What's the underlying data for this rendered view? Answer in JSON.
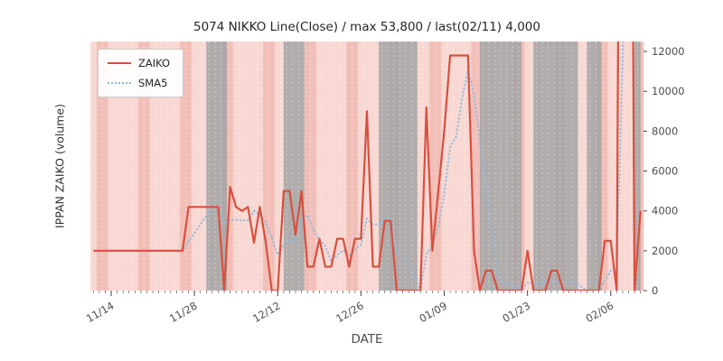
{
  "chart_data": {
    "type": "line",
    "title": "5074 NIKKO Line(Close) / max 53,800 / last(02/11) 4,000",
    "xlabel": "DATE",
    "ylabel": "IPPAN ZAIKO (volume)",
    "x_unit": "day",
    "x_start_label": "11/11",
    "x_ticks": [
      "11/14",
      "11/28",
      "12/12",
      "12/26",
      "01/09",
      "01/23",
      "02/06"
    ],
    "x_tick_indices": [
      3,
      17,
      31,
      45,
      59,
      73,
      87
    ],
    "y_ticks": [
      0,
      2000,
      4000,
      6000,
      8000,
      10000,
      12000
    ],
    "ylim": [
      0,
      12500
    ],
    "grid": false,
    "legend_position": "upper-left",
    "series": [
      {
        "name": "ZAIKO",
        "style": "solid",
        "color": "#d8503f",
        "values": [
          2000,
          2000,
          2000,
          2000,
          2000,
          2000,
          2000,
          2000,
          2000,
          2000,
          2000,
          2000,
          2000,
          2000,
          2000,
          2000,
          4200,
          4200,
          4200,
          4200,
          4200,
          4200,
          0,
          5200,
          4200,
          4000,
          4200,
          2400,
          4200,
          2400,
          0,
          0,
          5000,
          5000,
          2800,
          5000,
          1200,
          1200,
          2600,
          1200,
          1200,
          2600,
          2600,
          1200,
          2600,
          2600,
          9000,
          1200,
          1200,
          3500,
          3500,
          0,
          0,
          0,
          0,
          0,
          9200,
          2000,
          5000,
          8000,
          11800,
          11800,
          11800,
          11800,
          2000,
          0,
          1000,
          1000,
          0,
          0,
          0,
          0,
          0,
          2000,
          0,
          0,
          0,
          1000,
          1000,
          0,
          0,
          0,
          0,
          0,
          0,
          0,
          2500,
          2500,
          0,
          53800,
          53800,
          0,
          4000
        ]
      },
      {
        "name": "SMA5",
        "style": "dotted",
        "color": "#94bade",
        "derived": "5-day moving average of ZAIKO"
      }
    ],
    "colors": {
      "zaiko": "#d8503f",
      "sma5": "#94bade",
      "band_pink": "#f8d8d3",
      "band_pink_weekend": "#f2bfb8",
      "band_gray": "#a5a5a5",
      "tick_text": "#4d4d4d",
      "background": "#ffffff"
    },
    "bands": {
      "weekend_mod7": [
        1,
        2
      ],
      "gray": [
        [
          19.5,
          23
        ],
        [
          32.5,
          36
        ],
        [
          48.5,
          55
        ],
        [
          65.5,
          72.5
        ],
        [
          74.5,
          82
        ],
        [
          83.5,
          86
        ],
        [
          91.5,
          92.5
        ]
      ]
    }
  }
}
